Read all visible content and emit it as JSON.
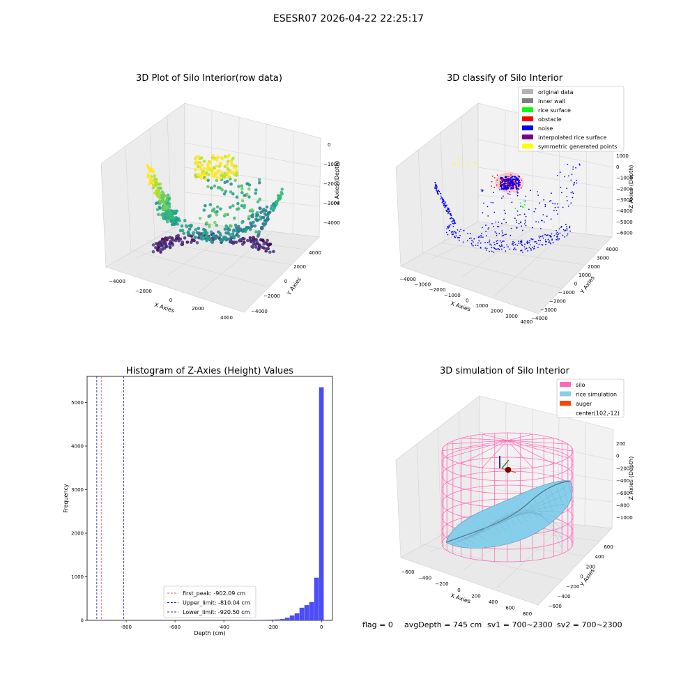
{
  "figure": {
    "suptitle": "ESESR07 2026-04-22 22:25:17",
    "status_line": {
      "flag": "flag = 0",
      "avg_depth": "avgDepth = 745 cm",
      "sv1": "sv1 = 700~2300",
      "sv2": "sv2 = 700~2300"
    }
  },
  "colors": {
    "hist_bar": "#4c4cf8",
    "first_peak_line": "#c86464",
    "limit_line": "#2a2ab0",
    "pane": "#f0f0f0",
    "grid": "#d6d6d6"
  },
  "chart_data": [
    {
      "id": "raw",
      "type": "scatter3d",
      "title": "3D Plot of Silo Interior(row data)",
      "xlabel": "X Axies",
      "ylabel": "Y Axies",
      "zlabel": "Z Axies (Depth)",
      "x_ticks": [
        "−4000",
        "−2000",
        "0",
        "2000",
        "4000"
      ],
      "y_ticks": [
        "−4000",
        "−2000",
        "0",
        "2000",
        "4000"
      ],
      "z_ticks": [
        "0",
        "−1000",
        "−2000",
        "−3000",
        "−4000"
      ],
      "colormap": "viridis (by depth)"
    },
    {
      "id": "classify",
      "type": "scatter3d",
      "title": "3D classify of Silo Interior",
      "xlabel": "X Axies",
      "ylabel": "Y Axies",
      "zlabel": "Z Axies (Depth)",
      "x_ticks": [
        "−4000",
        "−3000",
        "−2000",
        "−1000",
        "0",
        "1000",
        "2000",
        "3000",
        "4000"
      ],
      "y_ticks": [
        "4000",
        "3000",
        "2000",
        "1000",
        "0",
        "−1000",
        "−2000",
        "−3000",
        "−4000"
      ],
      "z_ticks": [
        "1000",
        "0",
        "−1000",
        "−2000",
        "−3000",
        "−4000",
        "−5000",
        "−6000"
      ],
      "legend": [
        {
          "label": "original data",
          "color": "#b4b4b4"
        },
        {
          "label": "inner wall",
          "color": "#808080"
        },
        {
          "label": "rice surface",
          "color": "#00ff00"
        },
        {
          "label": "obstacle",
          "color": "#ff0000"
        },
        {
          "label": "noise",
          "color": "#0000ff"
        },
        {
          "label": "interpolated rice surface",
          "color": "#800080"
        },
        {
          "label": "symmetric generated points",
          "color": "#ffff00"
        }
      ],
      "legend_position": "top-right"
    },
    {
      "id": "hist",
      "type": "bar",
      "title": "Histogram of Z-Axies (Height) Values",
      "xlabel": "Depth (cm)",
      "ylabel": "Frequency",
      "xlim": [
        -960,
        45
      ],
      "ylim": [
        0,
        5600
      ],
      "x_ticks": [
        -800,
        -600,
        -400,
        -200,
        0
      ],
      "y_ticks": [
        0,
        1000,
        2000,
        3000,
        4000,
        5000
      ],
      "bin_width": 20,
      "bins": [
        {
          "x0": -380,
          "count": 4
        },
        {
          "x0": -360,
          "count": 5
        },
        {
          "x0": -340,
          "count": 6
        },
        {
          "x0": -320,
          "count": 6
        },
        {
          "x0": -300,
          "count": 7
        },
        {
          "x0": -280,
          "count": 8
        },
        {
          "x0": -260,
          "count": 9
        },
        {
          "x0": -240,
          "count": 10
        },
        {
          "x0": -220,
          "count": 12
        },
        {
          "x0": -200,
          "count": 15
        },
        {
          "x0": -180,
          "count": 20
        },
        {
          "x0": -160,
          "count": 30
        },
        {
          "x0": -140,
          "count": 60
        },
        {
          "x0": -120,
          "count": 110
        },
        {
          "x0": -100,
          "count": 160
        },
        {
          "x0": -80,
          "count": 290
        },
        {
          "x0": -60,
          "count": 350
        },
        {
          "x0": -40,
          "count": 420
        },
        {
          "x0": -20,
          "count": 980
        },
        {
          "x0": 0,
          "count": 5350
        }
      ],
      "vlines": [
        {
          "label": "first_peak: -902.09 cm",
          "x": -902.09,
          "color": "#c86464"
        },
        {
          "label": "Upper_limit: -810.04 cm",
          "x": -810.04,
          "color": "#2a2ab0"
        },
        {
          "label": "Lower_limit: -920.50 cm",
          "x": -920.5,
          "color": "#2a2ab0"
        }
      ],
      "legend_position": "lower-center"
    },
    {
      "id": "sim",
      "type": "surface3d",
      "title": "3D simulation of Silo Interior",
      "xlabel": "X Axies",
      "ylabel": "Y Axies",
      "zlabel": "Z Axies (Depth)",
      "x_ticks": [
        "−600",
        "−400",
        "−200",
        "0",
        "200",
        "400",
        "600",
        "800"
      ],
      "y_ticks": [
        "600",
        "400",
        "200",
        "0",
        "−200",
        "−400",
        "−600"
      ],
      "z_ticks": [
        "200",
        "0",
        "−200",
        "−400",
        "−600",
        "−800",
        "−1000"
      ],
      "legend": [
        {
          "label": "silo",
          "color": "#ff69b4"
        },
        {
          "label": "rice simulation",
          "color": "#87ceeb"
        },
        {
          "label": "auger",
          "color": "#ff4500"
        },
        {
          "label": "center(102,-12)",
          "color": "#ffffff"
        }
      ],
      "legend_position": "top-right"
    }
  ]
}
